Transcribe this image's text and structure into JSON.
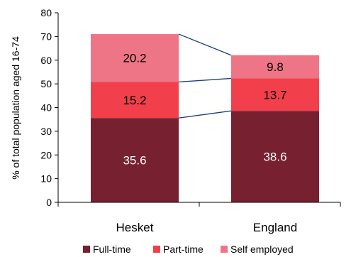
{
  "chart_data": {
    "type": "bar",
    "stacked": true,
    "categories": [
      "Hesket",
      "England"
    ],
    "series": [
      {
        "name": "Full-time",
        "values": [
          35.6,
          38.6
        ],
        "color": "#77202F",
        "label_color": "#ffffff"
      },
      {
        "name": "Part-time",
        "values": [
          15.2,
          13.7
        ],
        "color": "#F1404B",
        "label_color": "#000000"
      },
      {
        "name": "Self employed",
        "values": [
          20.2,
          9.8
        ],
        "color": "#EE7585",
        "label_color": "#000000"
      }
    ],
    "ylabel": "% of total population aged  16-74",
    "ylim": [
      0,
      80
    ],
    "yticks": [
      0,
      10,
      20,
      30,
      40,
      50,
      60,
      70,
      80
    ],
    "grid": false,
    "legend": "bottom",
    "connector_lines": true,
    "connector_color": "#1F3F7A"
  }
}
